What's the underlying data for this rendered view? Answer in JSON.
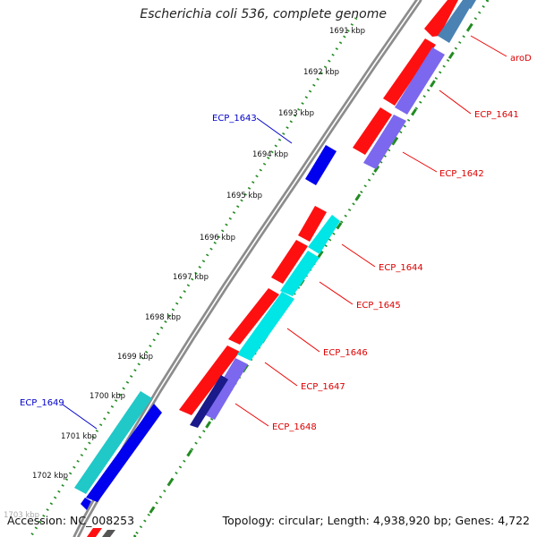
{
  "title": "Escherichia coli 536, complete genome",
  "footer": {
    "accession": "Accession: NC_008253",
    "topology": "Topology: circular; Length: 4,938,920 bp; Genes: 4,722"
  },
  "scale": {
    "unit": "kbp",
    "ticks": [
      "1691 kbp",
      "1692 kbp",
      "1693 kbp",
      "1694 kbp",
      "1695 kbp",
      "1696 kbp",
      "1697 kbp",
      "1698 kbp",
      "1699 kbp",
      "1700 kbp",
      "1701 kbp",
      "1702 kbp",
      "1703 kbp"
    ]
  },
  "colors": {
    "forward_cds": "#ff0000",
    "reverse_cds": "#0000ee",
    "label_forward": "#dd0000",
    "label_reverse": "#0000cc",
    "tick_dots": "#228b22",
    "backbone": "#8c8c8c",
    "cyan_feature": "#00e5e5",
    "purple_feature": "#7b68ee",
    "navy_feature": "#1a1a8a",
    "steel_feature": "#4a82b4"
  },
  "features": [
    {
      "name": "aroD",
      "color_key": "steel_feature"
    },
    {
      "name": "ECP_1641",
      "color_key": "purple_feature"
    },
    {
      "name": "ECP_1642",
      "color_key": "purple_feature"
    },
    {
      "name": "ECP_1643",
      "color_key": "reverse_cds"
    },
    {
      "name": "ECP_1644",
      "color_key": "cyan_feature"
    },
    {
      "name": "ECP_1645",
      "color_key": "cyan_feature"
    },
    {
      "name": "ECP_1646",
      "color_key": "cyan_feature"
    },
    {
      "name": "ECP_1647",
      "color_key": "purple_feature"
    },
    {
      "name": "ECP_1648",
      "color_key": "navy_feature"
    },
    {
      "name": "ECP_1649",
      "color_key": "cyan_feature"
    }
  ]
}
